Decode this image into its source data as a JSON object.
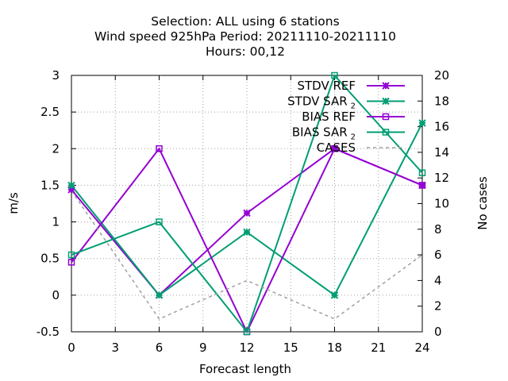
{
  "chart_data": {
    "type": "line",
    "title_lines": [
      "Selection: ALL using     6 stations",
      "Wind speed 925hPa   Period: 20211110-20211110",
      "Hours:  00,12"
    ],
    "xlabel": "Forecast length",
    "ylabel": "m/s",
    "y2label": "No cases",
    "xlim": [
      0,
      24
    ],
    "ylim": [
      -0.5,
      3
    ],
    "y2lim": [
      0,
      20
    ],
    "x_ticks": [
      "0",
      "3",
      "6",
      "9",
      "12",
      "15",
      "18",
      "21",
      "24"
    ],
    "y_ticks": [
      "-0.5",
      "0",
      "0.5",
      "1",
      "1.5",
      "2",
      "2.5",
      "3"
    ],
    "y2_ticks": [
      "0",
      "2",
      "4",
      "6",
      "8",
      "10",
      "12",
      "14",
      "16",
      "18",
      "20"
    ],
    "grid": true,
    "legend_position": "top-right",
    "x": [
      0,
      6,
      12,
      18,
      24
    ],
    "series": [
      {
        "name": "STDV REF",
        "color": "#9400d3",
        "marker": "x-cross",
        "axis": "y1",
        "values": [
          1.44,
          0.0,
          1.12,
          2.0,
          1.5
        ]
      },
      {
        "name": "STDV SAR",
        "name_sub": "2",
        "color": "#009e73",
        "marker": "x-cross",
        "axis": "y1",
        "values": [
          1.5,
          0.0,
          0.86,
          0.0,
          2.35
        ]
      },
      {
        "name": "BIAS REF",
        "color": "#9400d3",
        "marker": "square",
        "axis": "y1",
        "values": [
          0.45,
          2.0,
          -0.5,
          2.0,
          1.5
        ]
      },
      {
        "name": "BIAS SAR",
        "name_sub": "2",
        "color": "#009e73",
        "marker": "square",
        "axis": "y1",
        "values": [
          0.55,
          1.0,
          -0.5,
          3.0,
          1.67
        ]
      },
      {
        "name": "CASES",
        "color": "#a0a0a0",
        "marker": "none",
        "dash": true,
        "axis": "y2",
        "values": [
          11,
          1,
          4,
          1,
          6
        ]
      }
    ]
  }
}
